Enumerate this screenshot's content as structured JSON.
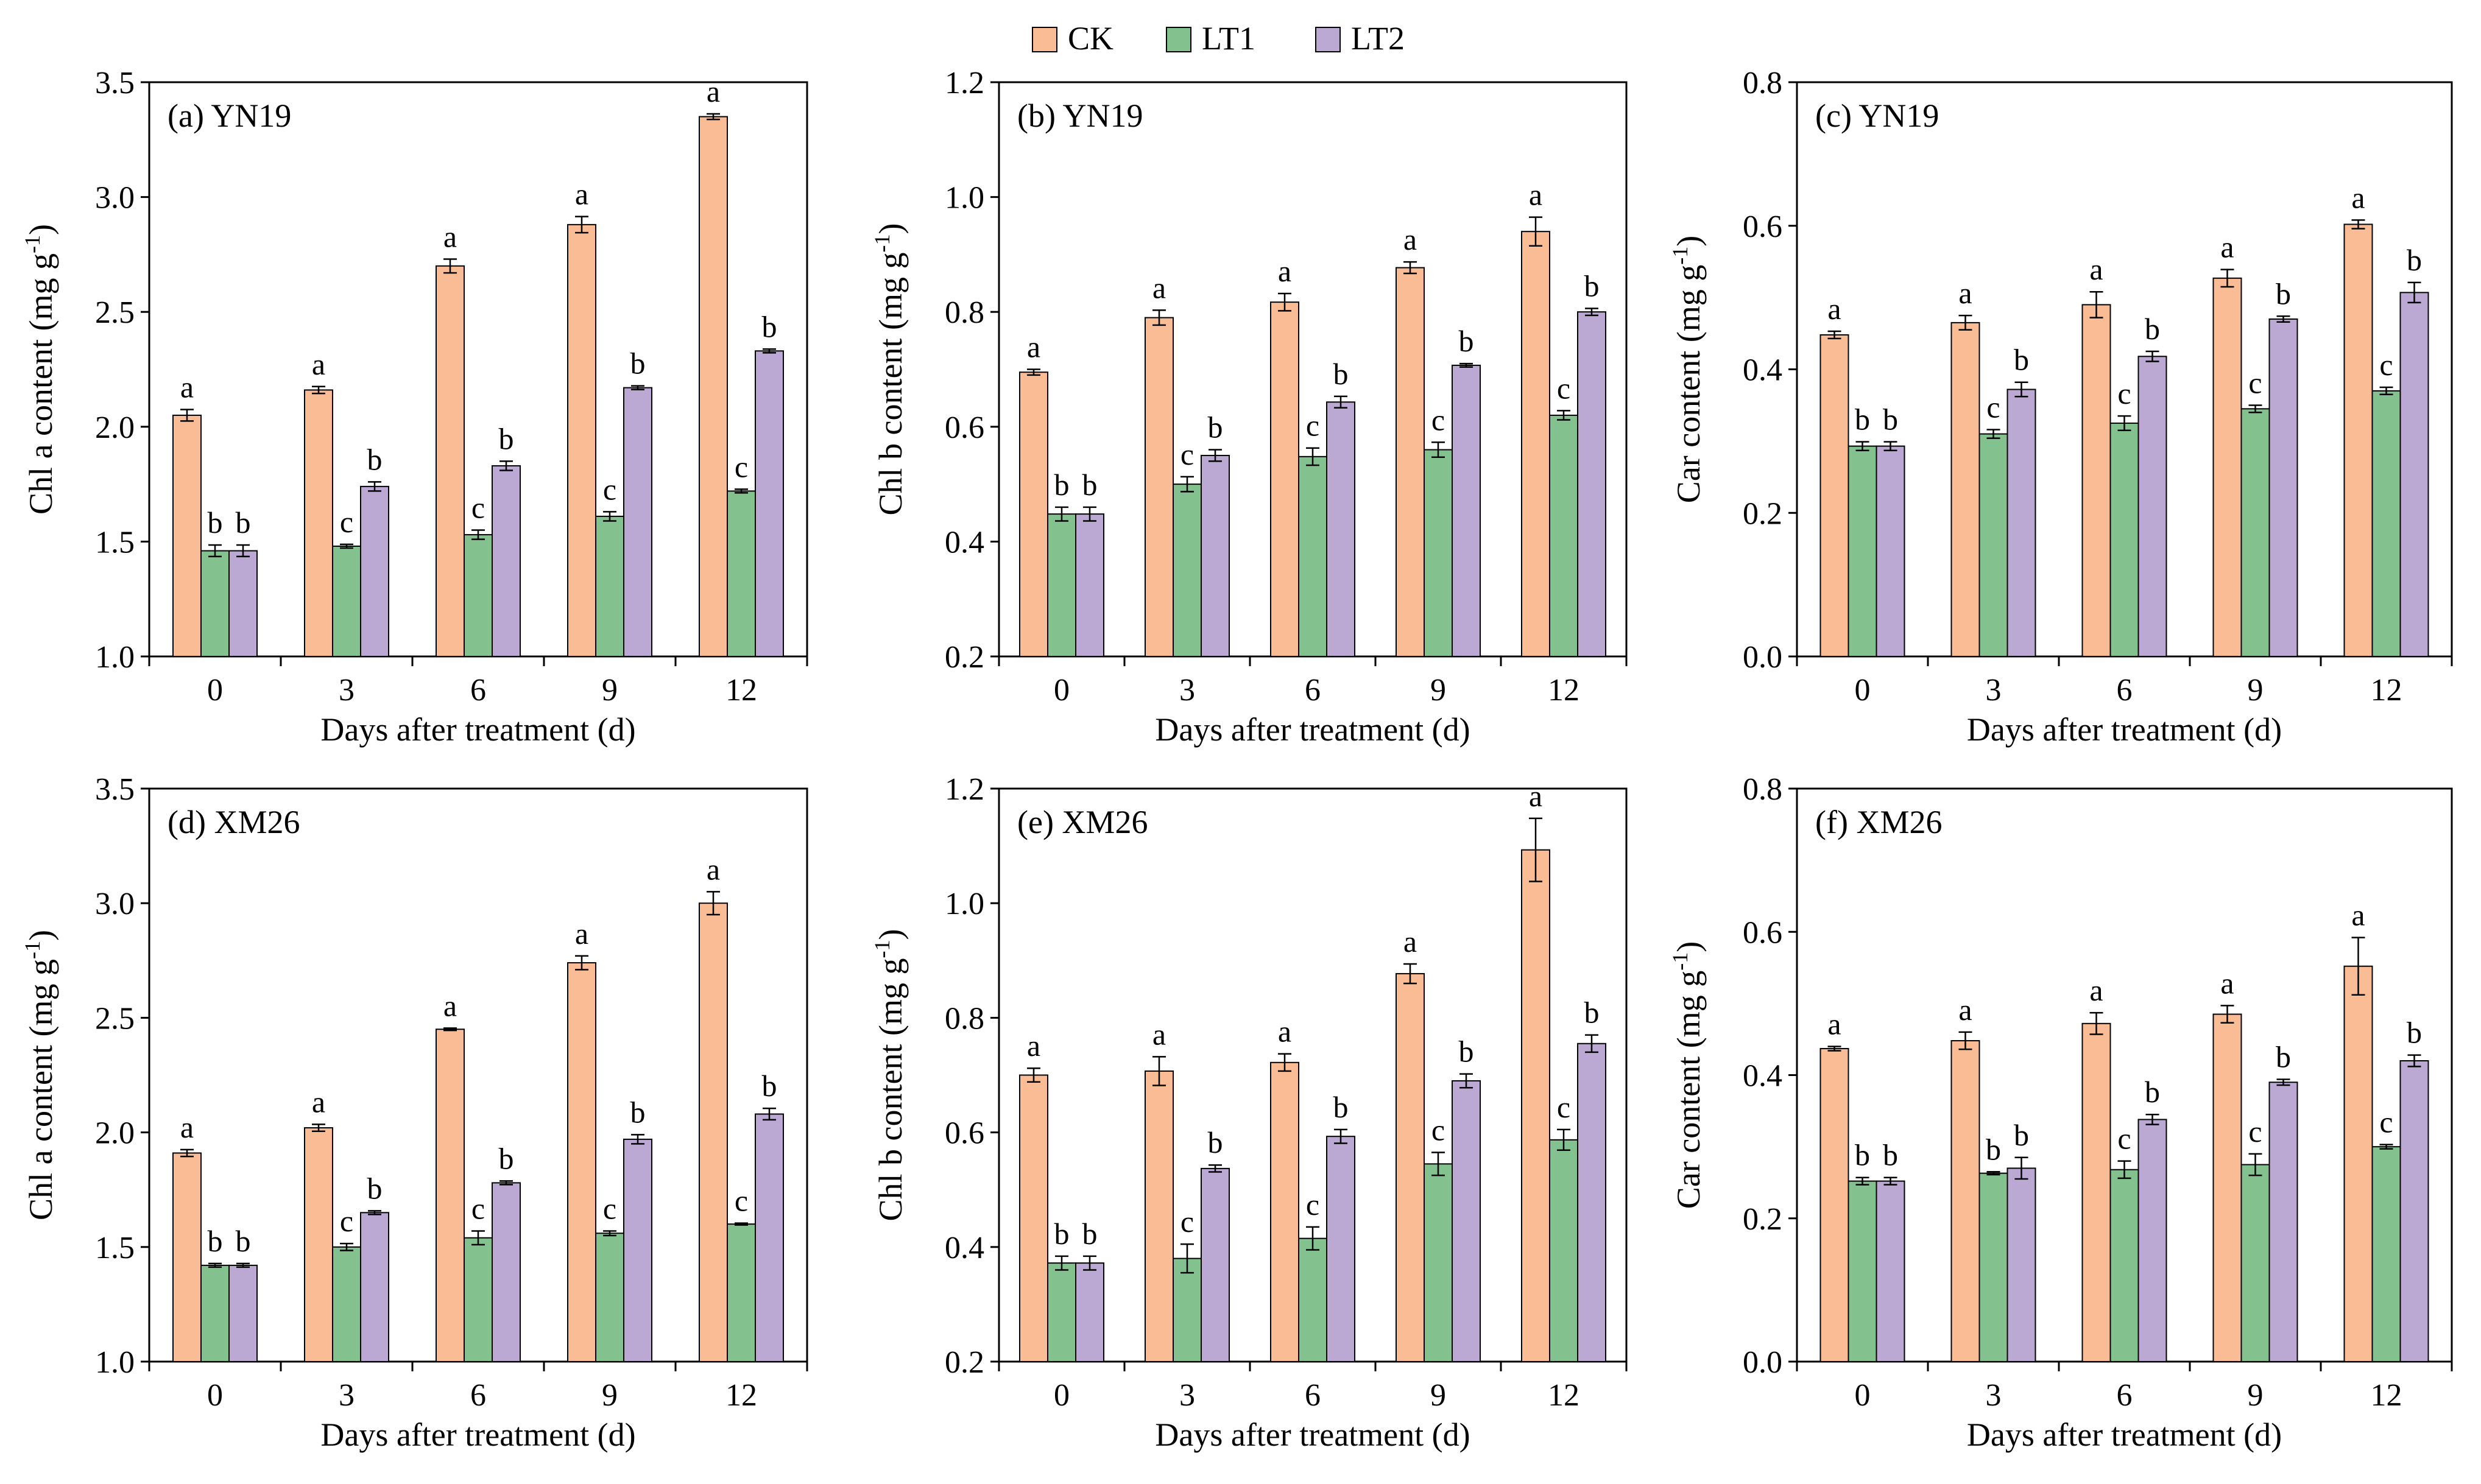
{
  "colors": {
    "CK": "#F9BC95",
    "LT1": "#83C28F",
    "LT2": "#BBA9D3",
    "axis": "#000000"
  },
  "legend": [
    {
      "key": "CK",
      "label": "CK"
    },
    {
      "key": "LT1",
      "label": "LT1"
    },
    {
      "key": "LT2",
      "label": "LT2"
    }
  ],
  "chart_data": [
    {
      "type": "bar",
      "title": "(a) YN19",
      "xlabel": "Days after treatment (d)",
      "ylabel_main": "Chl a content (mg g",
      "ylabel_sup": "-1",
      "ylabel_close": ")",
      "ylim": [
        1.0,
        3.5
      ],
      "ytick_labels": [
        "1.0",
        "1.5",
        "2.0",
        "2.5",
        "3.0",
        "3.5"
      ],
      "categories": [
        "0",
        "3",
        "6",
        "9",
        "12"
      ],
      "series": [
        {
          "name": "CK",
          "values": [
            2.05,
            2.16,
            2.7,
            2.88,
            3.35
          ],
          "errors": [
            0.025,
            0.015,
            0.03,
            0.035,
            0.012
          ],
          "letters": [
            "a",
            "a",
            "a",
            "a",
            "a"
          ]
        },
        {
          "name": "LT1",
          "values": [
            1.46,
            1.48,
            1.53,
            1.61,
            1.72
          ],
          "errors": [
            0.025,
            0.008,
            0.02,
            0.02,
            0.008
          ],
          "letters": [
            "b",
            "c",
            "c",
            "c",
            "c"
          ]
        },
        {
          "name": "LT2",
          "values": [
            1.46,
            1.74,
            1.83,
            2.17,
            2.33
          ],
          "errors": [
            0.025,
            0.02,
            0.02,
            0.008,
            0.008
          ],
          "letters": [
            "b",
            "b",
            "b",
            "b",
            "b"
          ]
        }
      ]
    },
    {
      "type": "bar",
      "title": "(b) YN19",
      "xlabel": "Days after treatment (d)",
      "ylabel_main": "Chl b content (mg g",
      "ylabel_sup": "-1",
      "ylabel_close": ")",
      "ylim": [
        0.2,
        1.2
      ],
      "ytick_labels": [
        "0.2",
        "0.4",
        "0.6",
        "0.8",
        "1.0",
        "1.2"
      ],
      "categories": [
        "0",
        "3",
        "6",
        "9",
        "12"
      ],
      "series": [
        {
          "name": "CK",
          "values": [
            0.695,
            0.79,
            0.817,
            0.877,
            0.94
          ],
          "errors": [
            0.005,
            0.013,
            0.015,
            0.01,
            0.025
          ],
          "letters": [
            "a",
            "a",
            "a",
            "a",
            "a"
          ]
        },
        {
          "name": "LT1",
          "values": [
            0.448,
            0.5,
            0.548,
            0.56,
            0.62
          ],
          "errors": [
            0.012,
            0.013,
            0.015,
            0.013,
            0.008
          ],
          "letters": [
            "b",
            "c",
            "c",
            "c",
            "c"
          ]
        },
        {
          "name": "LT2",
          "values": [
            0.448,
            0.55,
            0.643,
            0.707,
            0.8
          ],
          "errors": [
            0.012,
            0.01,
            0.01,
            0.003,
            0.006
          ],
          "letters": [
            "b",
            "b",
            "b",
            "b",
            "b"
          ]
        }
      ]
    },
    {
      "type": "bar",
      "title": "(c) YN19",
      "xlabel": "Days after treatment (d)",
      "ylabel_main": "Car content (mg g",
      "ylabel_sup": "-1",
      "ylabel_close": ")",
      "ylim": [
        0.0,
        0.8
      ],
      "ytick_labels": [
        "0.0",
        "0.2",
        "0.4",
        "0.6",
        "0.8"
      ],
      "categories": [
        "0",
        "3",
        "6",
        "9",
        "12"
      ],
      "series": [
        {
          "name": "CK",
          "values": [
            0.448,
            0.465,
            0.49,
            0.527,
            0.602
          ],
          "errors": [
            0.005,
            0.01,
            0.018,
            0.012,
            0.006
          ],
          "letters": [
            "a",
            "a",
            "a",
            "a",
            "a"
          ]
        },
        {
          "name": "LT1",
          "values": [
            0.293,
            0.31,
            0.325,
            0.345,
            0.37
          ],
          "errors": [
            0.006,
            0.006,
            0.01,
            0.005,
            0.005
          ],
          "letters": [
            "b",
            "c",
            "c",
            "c",
            "c"
          ]
        },
        {
          "name": "LT2",
          "values": [
            0.293,
            0.372,
            0.418,
            0.47,
            0.507
          ],
          "errors": [
            0.006,
            0.01,
            0.007,
            0.004,
            0.014
          ],
          "letters": [
            "b",
            "b",
            "b",
            "b",
            "b"
          ]
        }
      ]
    },
    {
      "type": "bar",
      "title": "(d) XM26",
      "xlabel": "Days after treatment (d)",
      "ylabel_main": "Chl a content (mg g",
      "ylabel_sup": "-1",
      "ylabel_close": ")",
      "ylim": [
        1.0,
        3.5
      ],
      "ytick_labels": [
        "1.0",
        "1.5",
        "2.0",
        "2.5",
        "3.0",
        "3.5"
      ],
      "categories": [
        "0",
        "3",
        "6",
        "9",
        "12"
      ],
      "series": [
        {
          "name": "CK",
          "values": [
            1.91,
            2.02,
            2.45,
            2.74,
            3.0
          ],
          "errors": [
            0.015,
            0.015,
            0.005,
            0.03,
            0.05
          ],
          "letters": [
            "a",
            "a",
            "a",
            "a",
            "a"
          ]
        },
        {
          "name": "LT1",
          "values": [
            1.42,
            1.5,
            1.54,
            1.56,
            1.6
          ],
          "errors": [
            0.008,
            0.015,
            0.03,
            0.01,
            0.004
          ],
          "letters": [
            "b",
            "c",
            "c",
            "c",
            "c"
          ]
        },
        {
          "name": "LT2",
          "values": [
            1.42,
            1.65,
            1.78,
            1.97,
            2.08
          ],
          "errors": [
            0.008,
            0.008,
            0.008,
            0.02,
            0.025
          ],
          "letters": [
            "b",
            "b",
            "b",
            "b",
            "b"
          ]
        }
      ]
    },
    {
      "type": "bar",
      "title": "(e) XM26",
      "xlabel": "Days after treatment (d)",
      "ylabel_main": "Chl b content (mg g",
      "ylabel_sup": "-1",
      "ylabel_close": ")",
      "ylim": [
        0.2,
        1.2
      ],
      "ytick_labels": [
        "0.2",
        "0.4",
        "0.6",
        "0.8",
        "1.0",
        "1.2"
      ],
      "categories": [
        "0",
        "3",
        "6",
        "9",
        "12"
      ],
      "series": [
        {
          "name": "CK",
          "values": [
            0.7,
            0.707,
            0.722,
            0.877,
            1.093
          ],
          "errors": [
            0.012,
            0.025,
            0.015,
            0.017,
            0.055
          ],
          "letters": [
            "a",
            "a",
            "a",
            "a",
            "a"
          ]
        },
        {
          "name": "LT1",
          "values": [
            0.372,
            0.38,
            0.415,
            0.545,
            0.587
          ],
          "errors": [
            0.012,
            0.025,
            0.02,
            0.02,
            0.018
          ],
          "letters": [
            "b",
            "c",
            "c",
            "c",
            "c"
          ]
        },
        {
          "name": "LT2",
          "values": [
            0.372,
            0.537,
            0.593,
            0.69,
            0.755
          ],
          "errors": [
            0.012,
            0.006,
            0.012,
            0.012,
            0.015
          ],
          "letters": [
            "b",
            "b",
            "b",
            "b",
            "b"
          ]
        }
      ]
    },
    {
      "type": "bar",
      "title": "(f) XM26",
      "xlabel": "Days after treatment (d)",
      "ylabel_main": "Car content (mg g",
      "ylabel_sup": "-1",
      "ylabel_close": ")",
      "ylim": [
        0.0,
        0.8
      ],
      "ytick_labels": [
        "0.0",
        "0.2",
        "0.4",
        "0.6",
        "0.8"
      ],
      "categories": [
        "0",
        "3",
        "6",
        "9",
        "12"
      ],
      "series": [
        {
          "name": "CK",
          "values": [
            0.437,
            0.448,
            0.472,
            0.485,
            0.552
          ],
          "errors": [
            0.003,
            0.012,
            0.015,
            0.012,
            0.04
          ],
          "letters": [
            "a",
            "a",
            "a",
            "a",
            "a"
          ]
        },
        {
          "name": "LT1",
          "values": [
            0.252,
            0.263,
            0.268,
            0.275,
            0.3
          ],
          "errors": [
            0.005,
            0.002,
            0.012,
            0.015,
            0.003
          ],
          "letters": [
            "b",
            "b",
            "c",
            "c",
            "c"
          ]
        },
        {
          "name": "LT2",
          "values": [
            0.252,
            0.27,
            0.338,
            0.39,
            0.42
          ],
          "errors": [
            0.005,
            0.015,
            0.007,
            0.004,
            0.008
          ],
          "letters": [
            "b",
            "b",
            "b",
            "b",
            "b"
          ]
        }
      ]
    }
  ]
}
